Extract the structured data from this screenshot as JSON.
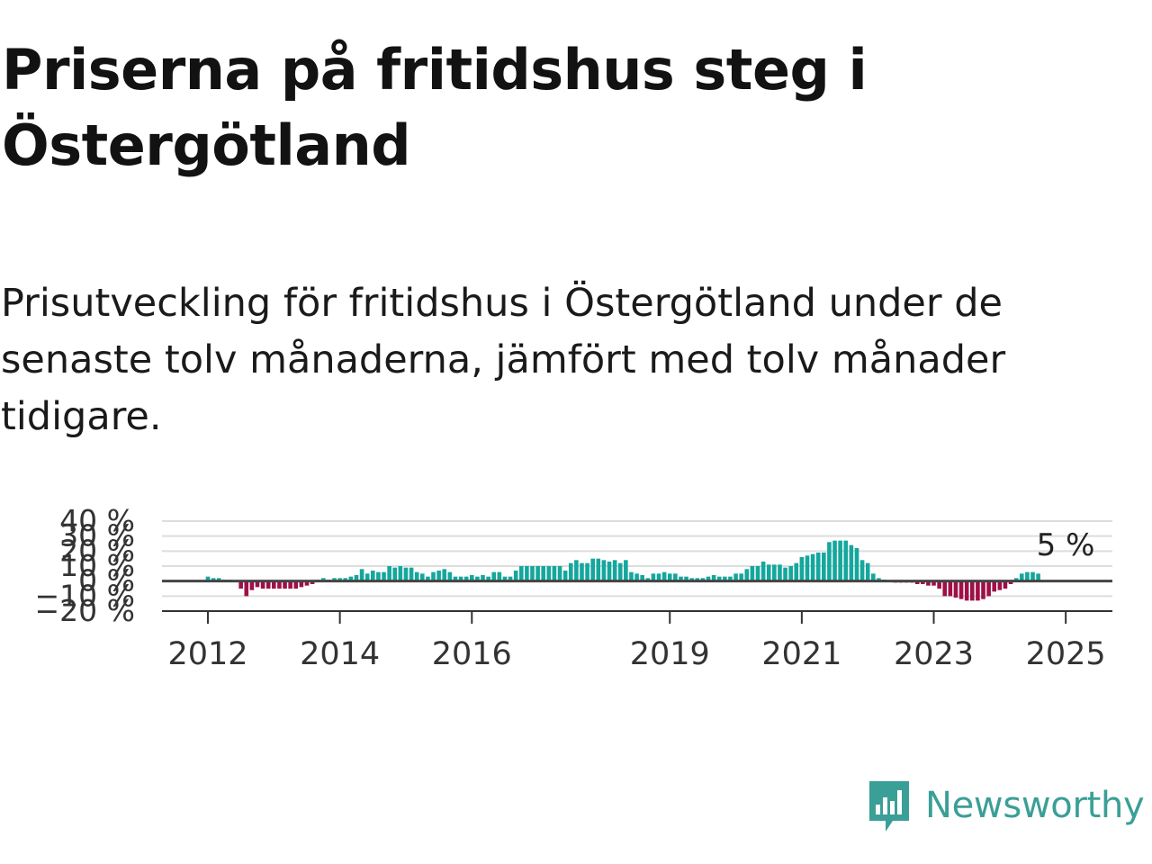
{
  "title": "Priserna på fritidshus steg i Östergötland",
  "subtitle": "Prisutveckling för fritidshus i Östergötland under de senaste tolv månaderna, jämfört med tolv månader tidigare.",
  "logo": {
    "text": "Newsworthy",
    "icon": "newsworthy-logo-icon"
  },
  "colors": {
    "positive": "#14a79d",
    "negative": "#9e1048",
    "grid": "#dddddd",
    "zero_line": "#444444",
    "logo": "#3a9f97"
  },
  "chart_data": {
    "type": "bar",
    "unit": "%",
    "x_unit": "month",
    "start": "2012-01",
    "end": "2025-01",
    "y_ticks": [
      "40 %",
      "30 %",
      "20 %",
      "10 %",
      "0 %",
      "−10 %",
      "−20 %"
    ],
    "y_tick_values": [
      40,
      30,
      20,
      10,
      0,
      -10,
      -20
    ],
    "ylim": [
      -20,
      40
    ],
    "x_ticks": [
      "2012",
      "2014",
      "2016",
      "2019",
      "2021",
      "2023",
      "2025"
    ],
    "x_tick_dates": [
      "2012-01",
      "2014-01",
      "2016-01",
      "2019-01",
      "2021-01",
      "2023-01",
      "2025-01"
    ],
    "last_value_label": "5 %",
    "grid": true,
    "values": [
      3,
      2,
      2,
      1,
      1,
      0,
      -5,
      -10,
      -6,
      -4,
      -5,
      -5,
      -5,
      -5,
      -5,
      -5,
      -5,
      -4,
      -3,
      -2,
      1,
      2,
      1,
      2,
      2,
      2,
      3,
      4,
      8,
      5,
      7,
      6,
      6,
      10,
      9,
      10,
      9,
      9,
      6,
      5,
      3,
      6,
      7,
      8,
      6,
      3,
      3,
      3,
      4,
      3,
      4,
      3,
      6,
      6,
      3,
      3,
      7,
      10,
      10,
      10,
      10,
      10,
      10,
      10,
      10,
      7,
      12,
      14,
      12,
      12,
      15,
      15,
      14,
      13,
      14,
      12,
      14,
      6,
      5,
      4,
      2,
      5,
      5,
      6,
      5,
      5,
      3,
      3,
      2,
      2,
      2,
      3,
      4,
      3,
      3,
      3,
      5,
      5,
      8,
      10,
      10,
      13,
      11,
      11,
      11,
      9,
      10,
      12,
      16,
      17,
      18,
      19,
      19,
      26,
      27,
      27,
      27,
      24,
      22,
      14,
      12,
      5,
      2,
      1,
      0,
      -1,
      -1,
      -1,
      -1,
      -2,
      -2,
      -3,
      -3,
      -5,
      -10,
      -10,
      -11,
      -12,
      -13,
      -13,
      -13,
      -12,
      -10,
      -7,
      -6,
      -5,
      -2,
      2,
      5,
      6,
      6,
      5
    ]
  }
}
